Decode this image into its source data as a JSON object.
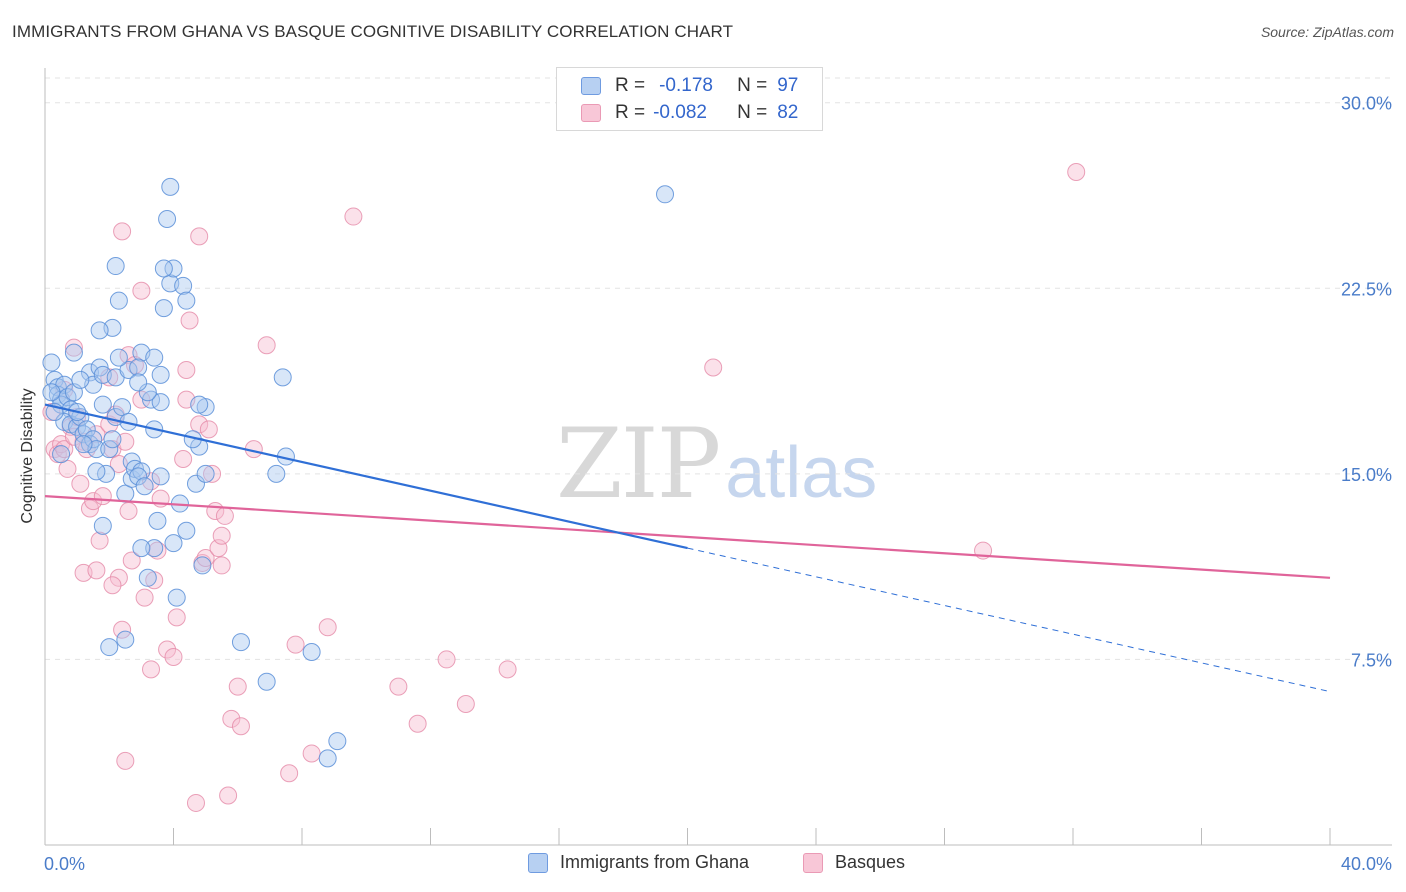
{
  "title": "IMMIGRANTS FROM GHANA VS BASQUE COGNITIVE DISABILITY CORRELATION CHART",
  "source": "Source: ZipAtlas.com",
  "watermark": {
    "zip": "ZIP",
    "atlas": "atlas"
  },
  "legend": {
    "rows": [
      {
        "r_label": "R =",
        "r_value": "-0.178",
        "n_label": "N =",
        "n_value": "97"
      },
      {
        "r_label": "R =",
        "r_value": "-0.082",
        "n_label": "N =",
        "n_value": "82"
      }
    ]
  },
  "bottom_legend": [
    "Immigrants from Ghana",
    "Basques"
  ],
  "colors": {
    "ghana_fill": "#a9c7ef",
    "ghana_stroke": "#5b8fd8",
    "ghana_line": "#2f6fd6",
    "basque_fill": "#f6bcd0",
    "basque_stroke": "#e58aa8",
    "basque_line": "#e0649a",
    "tick_text": "#4a7cc9",
    "grid": "#e3e3e3"
  },
  "chart_data": {
    "type": "scatter",
    "title": "IMMIGRANTS FROM GHANA VS BASQUE COGNITIVE DISABILITY CORRELATION CHART",
    "xlabel": "",
    "ylabel": "Cognitive Disability",
    "xlim": [
      0,
      40
    ],
    "ylim": [
      0,
      31
    ],
    "x_tick_labels": [
      "0.0%",
      "40.0%"
    ],
    "y_ticks": [
      7.5,
      15.0,
      22.5,
      30.0
    ],
    "y_tick_labels": [
      "7.5%",
      "15.0%",
      "22.5%",
      "30.0%"
    ],
    "grid": true,
    "legend_position": "top-center",
    "series": [
      {
        "name": "Immigrants from Ghana",
        "r": -0.178,
        "n": 97,
        "trend": {
          "x_solid": [
            0,
            20
          ],
          "y_solid": [
            17.8,
            12.0
          ],
          "x_dashed": [
            20,
            40
          ],
          "y_dashed": [
            12.0,
            6.2
          ]
        },
        "points": [
          [
            0.2,
            19.5
          ],
          [
            0.3,
            18.8
          ],
          [
            0.4,
            18.5
          ],
          [
            0.4,
            18.2
          ],
          [
            0.5,
            18.0
          ],
          [
            0.5,
            17.8
          ],
          [
            0.6,
            18.6
          ],
          [
            0.7,
            18.1
          ],
          [
            0.8,
            17.6
          ],
          [
            0.9,
            18.3
          ],
          [
            0.6,
            17.1
          ],
          [
            0.8,
            17.0
          ],
          [
            1.0,
            16.9
          ],
          [
            1.1,
            17.3
          ],
          [
            1.2,
            16.6
          ],
          [
            1.3,
            16.8
          ],
          [
            1.4,
            16.2
          ],
          [
            1.5,
            16.4
          ],
          [
            1.6,
            16.0
          ],
          [
            1.8,
            17.8
          ],
          [
            0.9,
            19.9
          ],
          [
            1.4,
            19.1
          ],
          [
            1.5,
            18.6
          ],
          [
            1.7,
            19.3
          ],
          [
            1.8,
            19.0
          ],
          [
            2.0,
            16.0
          ],
          [
            2.1,
            16.4
          ],
          [
            2.2,
            17.3
          ],
          [
            2.4,
            17.7
          ],
          [
            2.2,
            18.9
          ],
          [
            1.9,
            15.0
          ],
          [
            2.6,
            19.2
          ],
          [
            2.3,
            19.7
          ],
          [
            2.1,
            20.9
          ],
          [
            1.7,
            20.8
          ],
          [
            2.3,
            22.0
          ],
          [
            2.2,
            23.4
          ],
          [
            2.5,
            14.2
          ],
          [
            1.8,
            12.9
          ],
          [
            2.7,
            14.8
          ],
          [
            2.7,
            15.5
          ],
          [
            2.8,
            15.2
          ],
          [
            3.0,
            15.1
          ],
          [
            2.9,
            14.9
          ],
          [
            3.0,
            19.9
          ],
          [
            3.3,
            18.0
          ],
          [
            3.4,
            16.8
          ],
          [
            3.6,
            17.9
          ],
          [
            3.6,
            14.9
          ],
          [
            3.5,
            13.1
          ],
          [
            3.2,
            18.3
          ],
          [
            3.4,
            19.7
          ],
          [
            3.6,
            19.0
          ],
          [
            3.7,
            21.7
          ],
          [
            3.9,
            22.7
          ],
          [
            4.0,
            23.3
          ],
          [
            3.7,
            23.3
          ],
          [
            3.8,
            25.3
          ],
          [
            3.9,
            26.6
          ],
          [
            4.3,
            22.6
          ],
          [
            4.4,
            22.0
          ],
          [
            4.0,
            12.2
          ],
          [
            3.4,
            12.0
          ],
          [
            4.2,
            13.8
          ],
          [
            4.4,
            12.7
          ],
          [
            4.1,
            10.0
          ],
          [
            3.2,
            10.8
          ],
          [
            3.0,
            12.0
          ],
          [
            4.9,
            11.3
          ],
          [
            4.7,
            14.6
          ],
          [
            4.8,
            16.1
          ],
          [
            4.6,
            16.4
          ],
          [
            5.0,
            15.0
          ],
          [
            5.0,
            17.7
          ],
          [
            4.8,
            17.8
          ],
          [
            2.0,
            8.0
          ],
          [
            2.5,
            8.3
          ],
          [
            6.1,
            8.2
          ],
          [
            6.9,
            6.6
          ],
          [
            8.3,
            7.8
          ],
          [
            9.1,
            4.2
          ],
          [
            8.8,
            3.5
          ],
          [
            7.2,
            15.0
          ],
          [
            7.5,
            15.7
          ],
          [
            7.4,
            18.9
          ],
          [
            19.3,
            26.3
          ],
          [
            2.9,
            19.3
          ],
          [
            1.1,
            18.8
          ],
          [
            0.3,
            17.5
          ],
          [
            1.0,
            17.5
          ],
          [
            0.5,
            15.8
          ],
          [
            1.2,
            16.2
          ],
          [
            2.6,
            17.1
          ],
          [
            1.6,
            15.1
          ],
          [
            3.1,
            14.5
          ],
          [
            2.9,
            18.7
          ],
          [
            0.2,
            18.3
          ]
        ]
      },
      {
        "name": "Basques",
        "r": -0.082,
        "n": 82,
        "trend": {
          "x_solid": [
            0,
            40
          ],
          "y_solid": [
            14.1,
            10.8
          ]
        },
        "points": [
          [
            0.3,
            16.0
          ],
          [
            0.4,
            15.8
          ],
          [
            0.5,
            16.2
          ],
          [
            0.6,
            16.0
          ],
          [
            0.7,
            15.2
          ],
          [
            0.8,
            16.9
          ],
          [
            0.9,
            16.5
          ],
          [
            1.0,
            17.3
          ],
          [
            0.9,
            20.1
          ],
          [
            1.2,
            16.3
          ],
          [
            1.3,
            16.0
          ],
          [
            1.4,
            13.6
          ],
          [
            1.5,
            13.9
          ],
          [
            1.2,
            11.0
          ],
          [
            1.6,
            11.1
          ],
          [
            1.7,
            12.3
          ],
          [
            1.8,
            14.1
          ],
          [
            1.6,
            16.6
          ],
          [
            2.0,
            17.0
          ],
          [
            2.1,
            16.0
          ],
          [
            2.0,
            18.9
          ],
          [
            2.2,
            17.4
          ],
          [
            2.3,
            15.4
          ],
          [
            2.5,
            16.3
          ],
          [
            2.6,
            13.5
          ],
          [
            2.7,
            11.5
          ],
          [
            2.3,
            10.8
          ],
          [
            2.4,
            8.7
          ],
          [
            2.5,
            3.4
          ],
          [
            2.4,
            24.8
          ],
          [
            2.6,
            19.8
          ],
          [
            2.8,
            19.4
          ],
          [
            3.0,
            18.0
          ],
          [
            3.0,
            22.4
          ],
          [
            3.1,
            10.0
          ],
          [
            3.3,
            7.1
          ],
          [
            3.4,
            10.7
          ],
          [
            3.5,
            11.9
          ],
          [
            3.6,
            14.0
          ],
          [
            3.8,
            7.9
          ],
          [
            4.0,
            7.6
          ],
          [
            4.1,
            9.2
          ],
          [
            4.3,
            15.6
          ],
          [
            4.4,
            18.0
          ],
          [
            4.4,
            19.2
          ],
          [
            4.5,
            21.2
          ],
          [
            4.8,
            17.0
          ],
          [
            4.9,
            11.4
          ],
          [
            5.0,
            11.6
          ],
          [
            5.2,
            15.0
          ],
          [
            5.3,
            13.5
          ],
          [
            5.4,
            12.0
          ],
          [
            5.5,
            12.5
          ],
          [
            5.5,
            11.3
          ],
          [
            5.6,
            13.3
          ],
          [
            5.8,
            5.1
          ],
          [
            6.0,
            6.4
          ],
          [
            6.1,
            4.8
          ],
          [
            5.7,
            2.0
          ],
          [
            4.7,
            1.7
          ],
          [
            4.8,
            24.6
          ],
          [
            6.5,
            16.0
          ],
          [
            6.9,
            20.2
          ],
          [
            7.6,
            2.9
          ],
          [
            7.8,
            8.1
          ],
          [
            8.3,
            3.7
          ],
          [
            8.8,
            8.8
          ],
          [
            9.6,
            25.4
          ],
          [
            11.0,
            6.4
          ],
          [
            11.6,
            4.9
          ],
          [
            12.5,
            7.5
          ],
          [
            13.1,
            5.7
          ],
          [
            14.4,
            7.1
          ],
          [
            20.8,
            19.3
          ],
          [
            29.2,
            11.9
          ],
          [
            32.1,
            27.2
          ],
          [
            0.2,
            17.5
          ],
          [
            0.6,
            18.4
          ],
          [
            1.1,
            14.6
          ],
          [
            2.1,
            10.5
          ],
          [
            3.3,
            14.7
          ],
          [
            5.1,
            16.8
          ]
        ]
      }
    ]
  }
}
